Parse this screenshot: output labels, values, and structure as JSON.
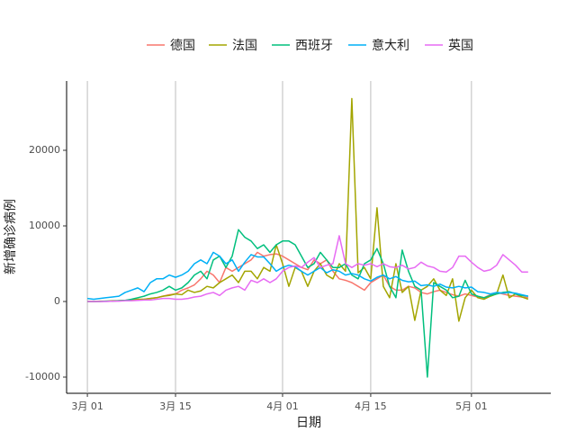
{
  "chart_data": {
    "type": "line",
    "x_label": "日期",
    "y_label": "新增确诊病例",
    "x": [
      0,
      1,
      2,
      3,
      4,
      5,
      6,
      7,
      8,
      9,
      10,
      11,
      12,
      13,
      14,
      15,
      16,
      17,
      18,
      19,
      20,
      21,
      22,
      23,
      24,
      25,
      26,
      27,
      28,
      29,
      30,
      31,
      32,
      33,
      34,
      35,
      36,
      37,
      38,
      39,
      40,
      41,
      42,
      43,
      44,
      45,
      46,
      47,
      48,
      49,
      50,
      51,
      52,
      53,
      54,
      55,
      56,
      57,
      58,
      59,
      60,
      61,
      62,
      63,
      64,
      65,
      66,
      67,
      68,
      69,
      70
    ],
    "xlim": [
      -3.3,
      73.6
    ],
    "xticks": [
      {
        "value": 0,
        "label": "3月 01"
      },
      {
        "value": 14,
        "label": "3月 15"
      },
      {
        "value": 31,
        "label": "4月 01"
      },
      {
        "value": 45,
        "label": "4月 15"
      },
      {
        "value": 61,
        "label": "5月 01"
      }
    ],
    "ylim": [
      -12143,
      29167
    ],
    "yticks": [
      -10000,
      0,
      10000,
      20000
    ],
    "grid": "x",
    "legend": "top",
    "series": [
      {
        "name": "德国",
        "color": "#F8766D",
        "values": [
          0,
          0,
          20,
          30,
          50,
          100,
          150,
          200,
          250,
          300,
          400,
          500,
          700,
          900,
          1000,
          1500,
          1800,
          2200,
          3000,
          4000,
          3500,
          2500,
          4500,
          4000,
          4500,
          5000,
          5500,
          6500,
          6000,
          6200,
          6300,
          6000,
          5500,
          5000,
          4500,
          4200,
          5500,
          5000,
          5500,
          4000,
          3000,
          2800,
          2500,
          2000,
          1500,
          2500,
          3000,
          3500,
          2000,
          1500,
          1500,
          2000,
          1800,
          1200,
          1000,
          1300,
          1500,
          1200,
          900,
          700,
          1000,
          800,
          600,
          500,
          900,
          1200,
          1000,
          800,
          700,
          600,
          500
        ]
      },
      {
        "name": "法国",
        "color": "#A3A500",
        "values": [
          0,
          0,
          50,
          50,
          100,
          100,
          150,
          200,
          300,
          300,
          400,
          500,
          700,
          800,
          1000,
          900,
          1500,
          1200,
          1400,
          2000,
          1800,
          2500,
          3000,
          3500,
          2500,
          4000,
          4000,
          3000,
          4500,
          4000,
          7500,
          5000,
          2000,
          4500,
          4000,
          2000,
          4000,
          5000,
          3500,
          3000,
          5000,
          4000,
          26849,
          3800,
          4500,
          3000,
          12400,
          2000,
          500,
          5000,
          1200,
          2000,
          -2500,
          1500,
          2000,
          3000,
          1500,
          800,
          3000,
          -2600,
          500,
          1500,
          500,
          300,
          700,
          1000,
          3500,
          500,
          1000,
          600,
          300
        ]
      },
      {
        "name": "西班牙",
        "color": "#00BF7D",
        "values": [
          0,
          0,
          0,
          50,
          50,
          100,
          150,
          300,
          500,
          700,
          1000,
          1200,
          1500,
          2000,
          1500,
          1800,
          2500,
          3500,
          4000,
          3000,
          5500,
          6000,
          4500,
          6000,
          9500,
          8500,
          8000,
          7000,
          7500,
          6500,
          7500,
          8000,
          8000,
          7500,
          6000,
          4500,
          5000,
          6500,
          5500,
          4500,
          4500,
          5000,
          3500,
          3000,
          5000,
          5500,
          7000,
          5000,
          2000,
          500,
          6800,
          4000,
          2000,
          1500,
          -10000,
          2500,
          2000,
          1500,
          500,
          700,
          2800,
          1000,
          700,
          500,
          800,
          1000,
          1200,
          1300,
          1000,
          800,
          700
        ]
      },
      {
        "name": "意大利",
        "color": "#00B0F6",
        "values": [
          400,
          300,
          400,
          500,
          600,
          700,
          1200,
          1500,
          1800,
          1300,
          2500,
          3000,
          3000,
          3500,
          3200,
          3500,
          4000,
          5000,
          5500,
          5000,
          6500,
          6000,
          5000,
          5500,
          4000,
          5200,
          6200,
          5900,
          5900,
          5000,
          4000,
          4500,
          4800,
          4600,
          4000,
          3500,
          4000,
          4500,
          3800,
          4200,
          4000,
          3500,
          3700,
          3500,
          3000,
          2700,
          3200,
          3500,
          3000,
          3300,
          2800,
          2600,
          2700,
          2100,
          2200,
          2000,
          2300,
          1900,
          1800,
          2000,
          1800,
          1900,
          1300,
          1200,
          1000,
          1200,
          1100,
          1200,
          1100,
          900,
          700
        ]
      },
      {
        "name": "英国",
        "color": "#E76BF3",
        "values": [
          0,
          0,
          0,
          0,
          50,
          50,
          100,
          100,
          150,
          200,
          200,
          300,
          400,
          400,
          300,
          300,
          400,
          600,
          700,
          1000,
          1200,
          800,
          1500,
          1800,
          2000,
          1500,
          2800,
          2500,
          3000,
          2500,
          3000,
          4000,
          4500,
          4700,
          4500,
          5200,
          5800,
          4500,
          4800,
          5000,
          8700,
          5000,
          4500,
          5000,
          4800,
          5000,
          4600,
          5000,
          4600,
          4500,
          4800,
          4300,
          4500,
          5200,
          4700,
          4500,
          4000,
          3900,
          4500,
          6000,
          6000,
          5200,
          4500,
          4000,
          4200,
          4800,
          6200,
          5500,
          4800,
          3900,
          3900
        ]
      }
    ]
  }
}
